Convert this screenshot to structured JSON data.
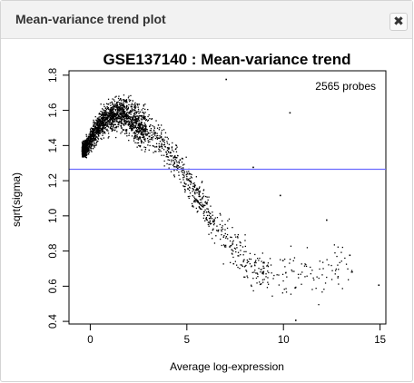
{
  "window": {
    "title": "Mean-variance trend plot",
    "close_icon": "close-icon",
    "close_glyph": "✖"
  },
  "chart_data": {
    "type": "scatter",
    "title": "GSE137140 : Mean-variance trend",
    "xlabel": "Average log-expression",
    "ylabel": "sqrt(sigma)",
    "annotation": "2565 probes",
    "xlim": [
      -1.1,
      15.3
    ],
    "ylim": [
      0.385,
      1.825
    ],
    "xticks": [
      0,
      5,
      10,
      15
    ],
    "yticks": [
      0.4,
      0.6,
      0.8,
      1.0,
      1.2,
      1.4,
      1.6,
      1.8
    ],
    "ytick_labels": [
      "0.4",
      "0.6",
      "0.8",
      "1.0",
      "1.2",
      "1.4",
      "1.6",
      "1.8"
    ],
    "grid": false,
    "trend_line": {
      "y": 1.265,
      "color": "#6b6bff"
    },
    "point_color": "#000000",
    "n_points": 2565,
    "trend_description": [
      {
        "x": -0.3,
        "y": 1.38
      },
      {
        "x": 0.5,
        "y": 1.53
      },
      {
        "x": 1.5,
        "y": 1.6
      },
      {
        "x": 2.5,
        "y": 1.52
      },
      {
        "x": 3.5,
        "y": 1.44
      },
      {
        "x": 4.5,
        "y": 1.3
      },
      {
        "x": 5.5,
        "y": 1.12
      },
      {
        "x": 6.5,
        "y": 0.95
      },
      {
        "x": 7.5,
        "y": 0.8
      },
      {
        "x": 8.5,
        "y": 0.7
      },
      {
        "x": 9.5,
        "y": 0.68
      },
      {
        "x": 10.5,
        "y": 0.68
      },
      {
        "x": 11.5,
        "y": 0.69
      },
      {
        "x": 12.5,
        "y": 0.7
      },
      {
        "x": 13.5,
        "y": 0.71
      }
    ],
    "outliers": [
      {
        "x": 7.0,
        "y": 1.78
      },
      {
        "x": 10.3,
        "y": 1.59
      },
      {
        "x": 14.9,
        "y": 0.61
      },
      {
        "x": 10.6,
        "y": 0.41
      },
      {
        "x": 8.4,
        "y": 1.28
      },
      {
        "x": 9.8,
        "y": 1.12
      },
      {
        "x": 12.2,
        "y": 0.98
      },
      {
        "x": 13.4,
        "y": 0.78
      }
    ]
  }
}
